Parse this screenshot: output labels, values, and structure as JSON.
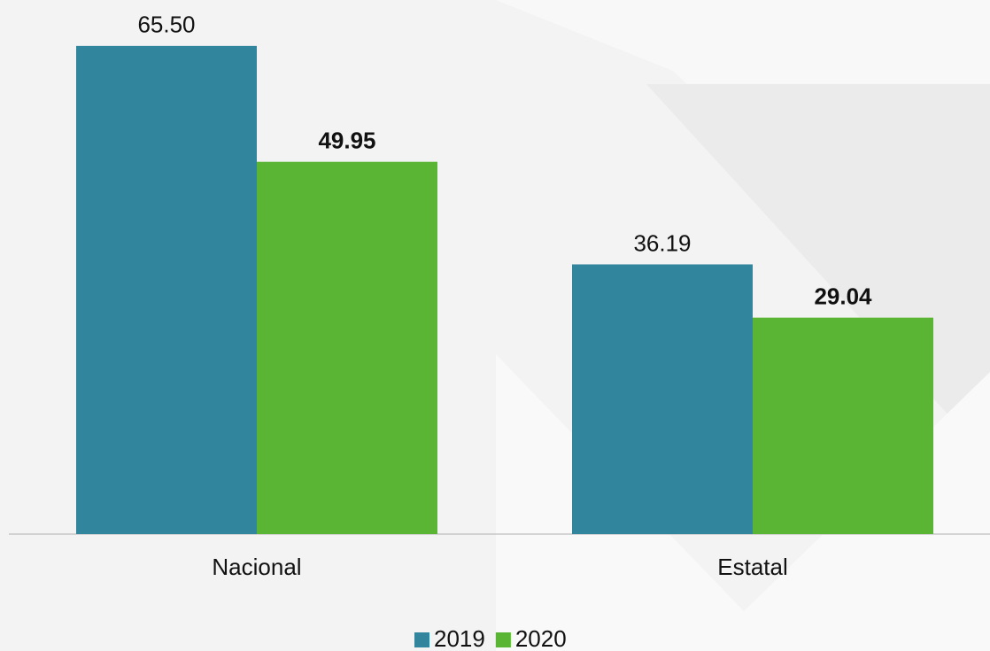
{
  "chart_data": {
    "type": "bar",
    "categories": [
      "Nacional",
      "Estatal"
    ],
    "series": [
      {
        "name": "2019",
        "color": "#31859c",
        "values": [
          65.5,
          36.19
        ],
        "value_labels": [
          "65.50",
          "36.19"
        ]
      },
      {
        "name": "2020",
        "color": "#5ab534",
        "values": [
          49.95,
          29.04
        ],
        "value_labels": [
          "49.95",
          "29.04"
        ]
      }
    ],
    "ylim": [
      0,
      70
    ]
  }
}
